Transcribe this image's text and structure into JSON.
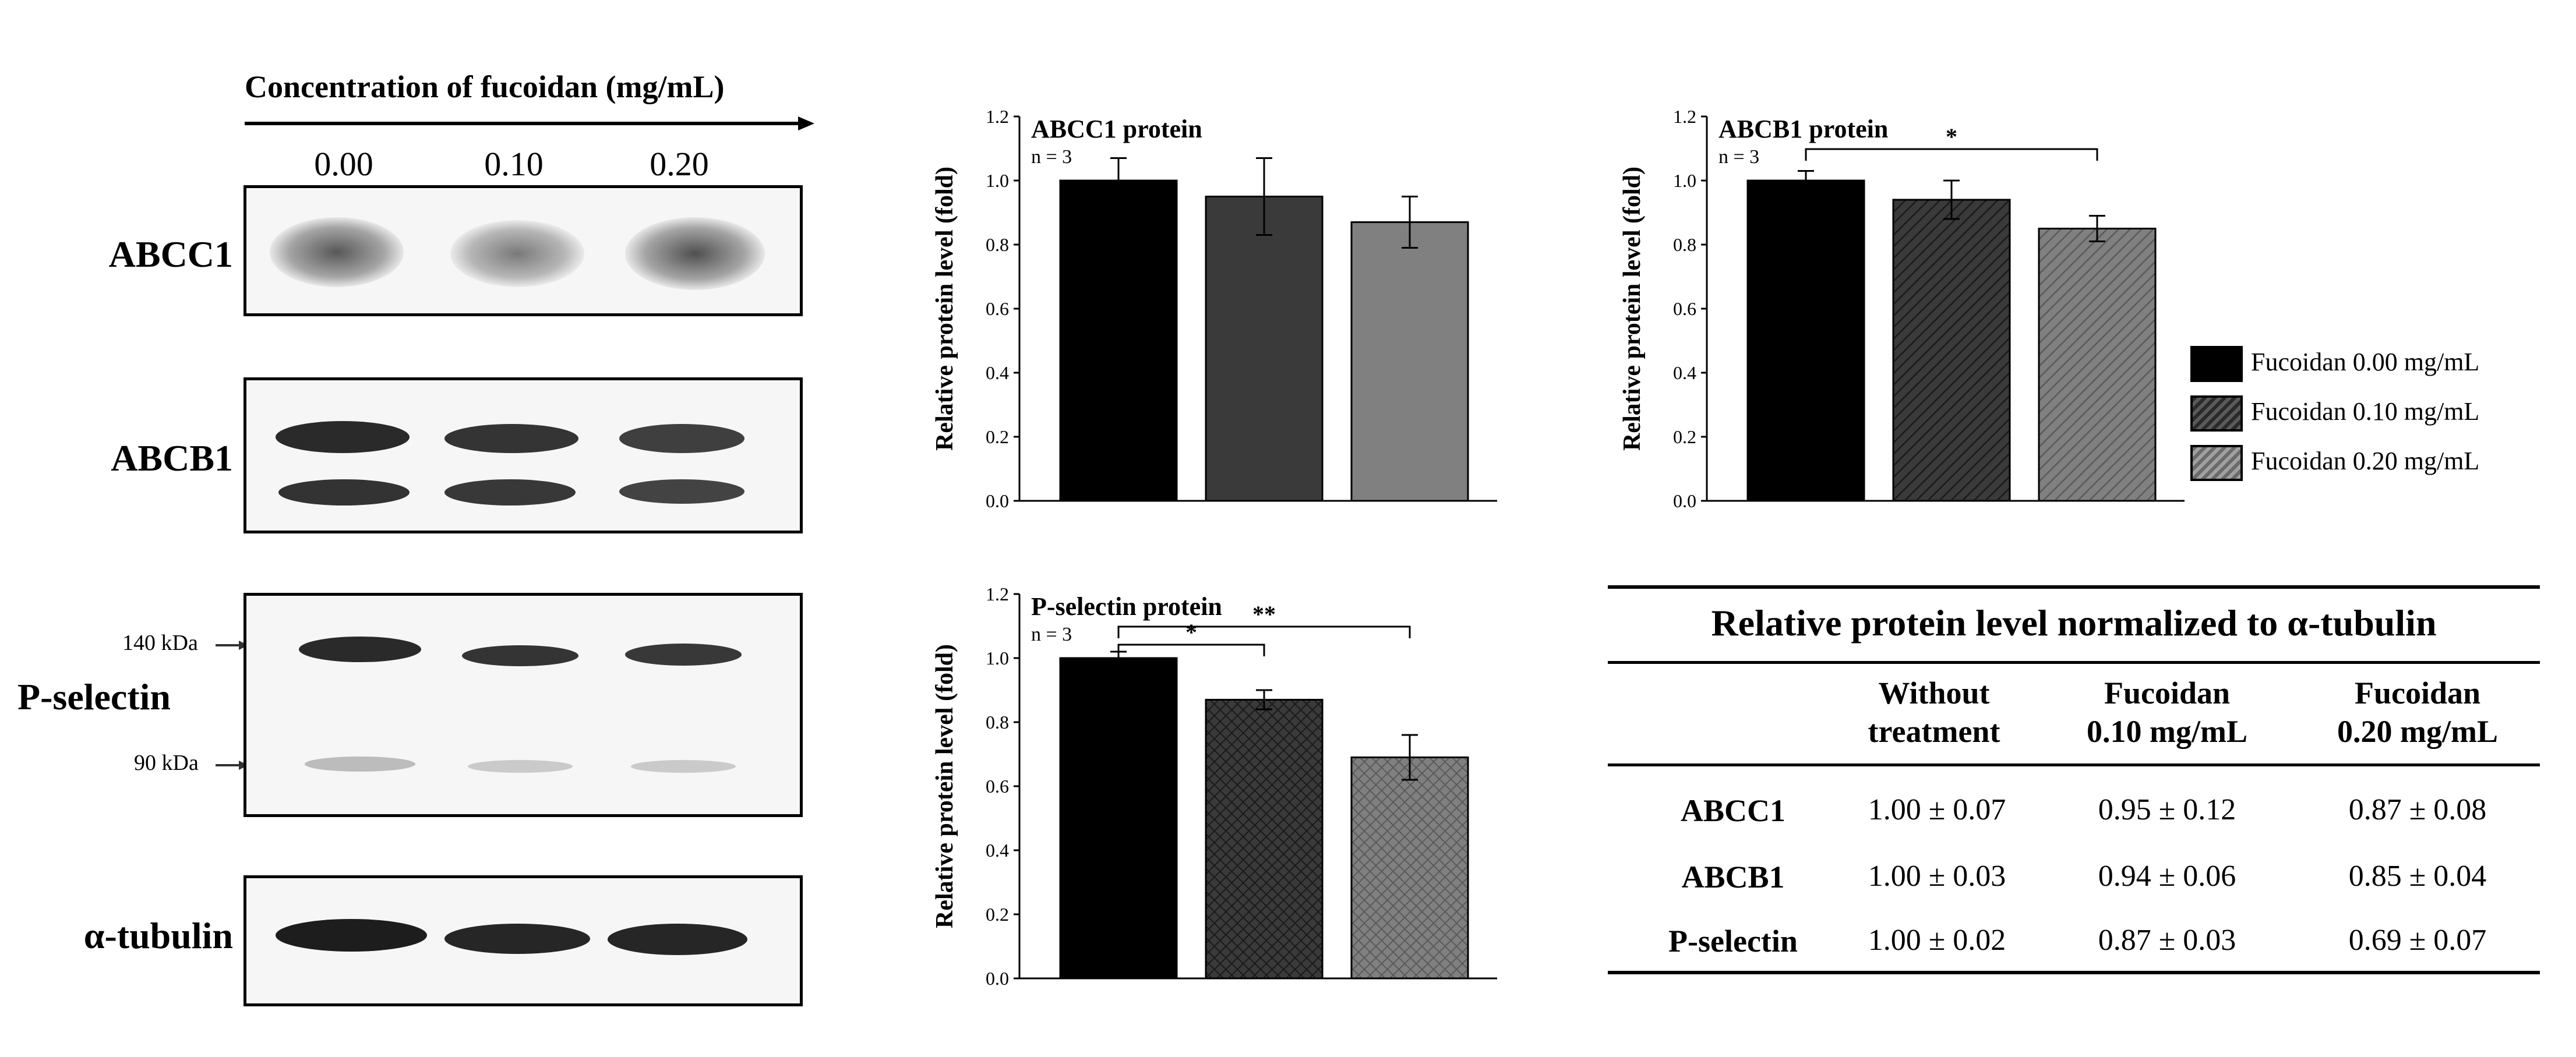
{
  "western_blot": {
    "header": "Concentration of fucoidan (mg/mL)",
    "concentrations": [
      "0.00",
      "0.10",
      "0.20"
    ],
    "proteins": [
      "ABCC1",
      "ABCB1",
      "P-selectin",
      "α-tubulin"
    ],
    "markers": [
      "140 kDa",
      "90 kDa"
    ]
  },
  "chart_data": [
    {
      "type": "bar",
      "title": "ABCC1 protein",
      "annotation": "n = 3",
      "ylabel": "Relative protein level (fold)",
      "xlabel": "",
      "ylim": [
        0,
        1.2
      ],
      "yticks": [
        "0.0",
        "0.2",
        "0.4",
        "0.6",
        "0.8",
        "1.0",
        "1.2"
      ],
      "categories": [
        "Fucoidan 0.00 mg/mL",
        "Fucoidan 0.10 mg/mL",
        "Fucoidan 0.20 mg/mL"
      ],
      "values": [
        1.0,
        0.95,
        0.87
      ],
      "errors": [
        0.07,
        0.12,
        0.08
      ],
      "significance": []
    },
    {
      "type": "bar",
      "title": "ABCB1 protein",
      "annotation": "n = 3",
      "ylabel": "Relative protein level (fold)",
      "xlabel": "",
      "ylim": [
        0,
        1.2
      ],
      "yticks": [
        "0.0",
        "0.2",
        "0.4",
        "0.6",
        "0.8",
        "1.0",
        "1.2"
      ],
      "categories": [
        "Fucoidan 0.00 mg/mL",
        "Fucoidan 0.10 mg/mL",
        "Fucoidan 0.20 mg/mL"
      ],
      "values": [
        1.0,
        0.94,
        0.85
      ],
      "errors": [
        0.03,
        0.06,
        0.04
      ],
      "significance": [
        {
          "from": 0,
          "to": 2,
          "label": "*"
        }
      ]
    },
    {
      "type": "bar",
      "title": "P-selectin protein",
      "annotation": "n = 3",
      "ylabel": "Relative protein level (fold)",
      "xlabel": "",
      "ylim": [
        0,
        1.2
      ],
      "yticks": [
        "0.0",
        "0.2",
        "0.4",
        "0.6",
        "0.8",
        "1.0",
        "1.2"
      ],
      "categories": [
        "Fucoidan 0.00 mg/mL",
        "Fucoidan 0.10 mg/mL",
        "Fucoidan 0.20 mg/mL"
      ],
      "values": [
        1.0,
        0.87,
        0.69
      ],
      "errors": [
        0.02,
        0.03,
        0.07
      ],
      "significance": [
        {
          "from": 0,
          "to": 1,
          "label": "*"
        },
        {
          "from": 0,
          "to": 2,
          "label": "**"
        }
      ]
    }
  ],
  "legend": {
    "items": [
      {
        "label": "Fucoidan 0.00 mg/mL",
        "color": "#000000"
      },
      {
        "label": "Fucoidan 0.10 mg/mL",
        "color": "#3a3a3a"
      },
      {
        "label": "Fucoidan 0.20 mg/mL",
        "color": "#808080"
      }
    ]
  },
  "table": {
    "title": "Relative protein level normalized to α-tubulin",
    "columns": [
      "Without treatment",
      "Fucoidan 0.10 mg/mL",
      "Fucoidan 0.20 mg/mL"
    ],
    "rows": [
      {
        "label": "ABCC1",
        "values": [
          "1.00 ± 0.07",
          "0.95 ± 0.12",
          "0.87 ± 0.08"
        ]
      },
      {
        "label": "ABCB1",
        "values": [
          "1.00 ± 0.03",
          "0.94 ± 0.06",
          "0.85 ± 0.04"
        ]
      },
      {
        "label": "P-selectin",
        "values": [
          "1.00 ± 0.02",
          "0.87 ± 0.03",
          "0.69 ± 0.07"
        ]
      }
    ]
  }
}
